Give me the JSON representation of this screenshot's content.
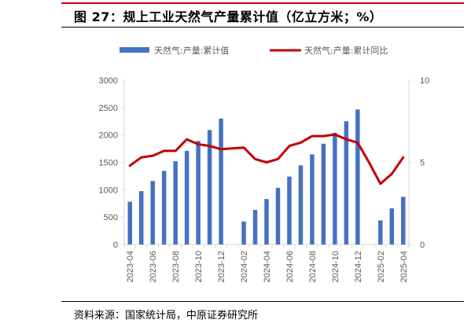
{
  "figure": {
    "title": "图 27：规上工业天然气产量累计值（亿立方米；%）",
    "source": "资料来源：国家统计局，中原证券研究所"
  },
  "colors": {
    "bar": "#4472c4",
    "line": "#c00000",
    "axis": "#d9d9d9",
    "text": "#595959",
    "rule": "#c00000"
  },
  "chart_data": {
    "type": "bar",
    "title": "图 27：规上工业天然气产量累计值（亿立方米；%）",
    "categories": [
      "2023-04",
      "2023-05",
      "2023-06",
      "2023-07",
      "2023-08",
      "2023-09",
      "2023-10",
      "2023-11",
      "2023-12",
      "2024-01",
      "2024-02",
      "2024-03",
      "2024-04",
      "2024-05",
      "2024-06",
      "2024-07",
      "2024-08",
      "2024-09",
      "2024-10",
      "2024-11",
      "2024-12",
      "2025-01",
      "2025-02",
      "2025-03",
      "2025-04"
    ],
    "x_tick_labels": [
      "2023-04",
      "2023-06",
      "2023-08",
      "2023-10",
      "2023-12",
      "2024-02",
      "2024-04",
      "2024-06",
      "2024-08",
      "2024-10",
      "2024-12",
      "2025-02",
      "2025-04"
    ],
    "series": [
      {
        "name": "天然气:产量:累计值",
        "type": "bar",
        "axis": "left",
        "values": [
          780,
          975,
          1160,
          1345,
          1520,
          1710,
          1890,
          2090,
          2300,
          null,
          420,
          630,
          830,
          1035,
          1240,
          1445,
          1645,
          1840,
          2040,
          2250,
          2465,
          null,
          440,
          660,
          870
        ]
      },
      {
        "name": "天然气:产量:累计同比",
        "type": "line",
        "axis": "right",
        "values": [
          4.8,
          5.3,
          5.4,
          5.7,
          5.7,
          6.4,
          6.1,
          6.0,
          5.8,
          5.85,
          5.9,
          5.2,
          5.0,
          5.2,
          6.0,
          6.2,
          6.6,
          6.6,
          6.7,
          6.4,
          6.2,
          5.0,
          3.7,
          4.3,
          5.3
        ]
      }
    ],
    "y_left": {
      "ticks": [
        0,
        500,
        1000,
        1500,
        2000,
        2500,
        3000
      ],
      "min": 0,
      "max": 3000
    },
    "y_right": {
      "ticks": [
        0,
        5,
        10
      ],
      "min": 0,
      "max": 10
    },
    "legend_position": "top",
    "grid": false
  }
}
